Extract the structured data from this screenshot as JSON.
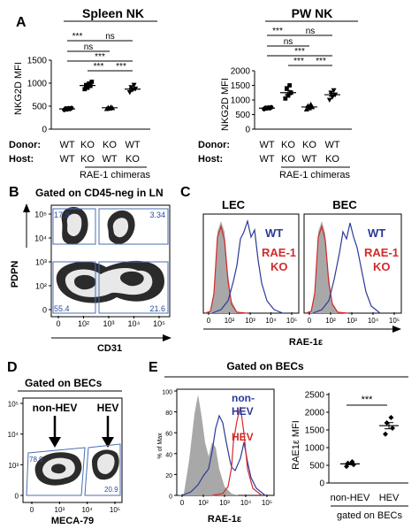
{
  "colors": {
    "wt": "#2a3a9a",
    "ko": "#d42a2a",
    "fill_gray": "#a8a8a8",
    "gate": "#4a6fb0"
  },
  "panel_a": {
    "letter": "A",
    "spleen_title": "Spleen NK",
    "pw_title": "PW NK",
    "ylabel": "NKG2D MFI",
    "donor_label": "Donor:",
    "host_label": "Host:",
    "chimeras": "RAE-1 chimeras",
    "donor_vals": [
      "WT",
      "KO",
      "KO",
      "WT"
    ],
    "host_vals": [
      "WT",
      "KO",
      "WT",
      "KO"
    ],
    "sig": [
      "***",
      "ns",
      "ns",
      "***",
      "***",
      "***"
    ],
    "spleen_yticks": [
      "0",
      "500",
      "1000",
      "1500"
    ],
    "pw_yticks": [
      "0",
      "500",
      "1000",
      "1500",
      "2000"
    ]
  },
  "panel_b": {
    "letter": "B",
    "title": "Gated on CD45-neg in LN",
    "ylabel": "PDPN",
    "xlabel": "CD31",
    "q_tl": "17.9",
    "q_tr": "3.34",
    "q_bl": "55.4",
    "q_br": "21.6",
    "xticks": [
      "0",
      "10²",
      "10³",
      "10⁴",
      "10⁵"
    ],
    "yticks": [
      "10⁵",
      "10⁴",
      "10³",
      "10²",
      "0"
    ]
  },
  "panel_c": {
    "letter": "C",
    "lec": "LEC",
    "bec": "BEC",
    "wt": "WT",
    "ko1": "RAE-1",
    "ko2": "KO",
    "xlabel": "RAE-1ε",
    "xticks": [
      "0",
      "10²",
      "10³",
      "10⁴",
      "10⁵"
    ]
  },
  "panel_d": {
    "letter": "D",
    "title": "Gated on BECs",
    "nonhev": "non-HEV",
    "hev": "HEV",
    "xlabel": "MECA-79",
    "q1": "78.9",
    "q2": "20.9",
    "xticks": [
      "0",
      "10³",
      "10⁴",
      "10⁵"
    ],
    "yticks": [
      "10⁵",
      "10⁴",
      "10³",
      "0"
    ]
  },
  "panel_e": {
    "letter": "E",
    "title": "Gated on BECs",
    "nonhev1": "non-",
    "nonhev2": "HEV",
    "hev": "HEV",
    "ylabel": "% of Max",
    "xlabel": "RAE-1ε",
    "xticks": [
      "0",
      "10²",
      "10³",
      "10⁴",
      "10⁵"
    ],
    "yticks": [
      "100",
      "80",
      "60",
      "40",
      "20",
      "0"
    ],
    "scatter_ylabel": "RAE1ε MFI",
    "scatter_yticks": [
      "0",
      "500",
      "1000",
      "1500",
      "2000",
      "2500"
    ],
    "cat1": "non-HEV",
    "cat2": "HEV",
    "sig": "***",
    "footer": "gated on BECs"
  },
  "chart_data": [
    {
      "type": "scatter",
      "title": "Spleen NK",
      "ylabel": "NKG2D MFI",
      "ylim": [
        0,
        1500
      ],
      "categories": [
        "WT/WT",
        "KO/KO",
        "KO/WT",
        "WT/KO"
      ],
      "series": [
        {
          "values": [
            [
              420,
              430,
              440,
              450,
              455,
              460
            ],
            [
              870,
              900,
              940,
              960,
              990,
              1030
            ],
            [
              440,
              450,
              460,
              470,
              480
            ],
            [
              800,
              850,
              880,
              910,
              960
            ]
          ]
        }
      ],
      "means": [
        440,
        950,
        465,
        870
      ]
    },
    {
      "type": "scatter",
      "title": "PW NK",
      "ylabel": "NKG2D MFI",
      "ylim": [
        0,
        2000
      ],
      "categories": [
        "WT/WT",
        "KO/KO",
        "KO/WT",
        "WT/KO"
      ],
      "series": [
        {
          "values": [
            [
              690,
              710,
              720,
              730,
              740,
              750
            ],
            [
              1050,
              1150,
              1250,
              1400,
              1500
            ],
            [
              680,
              720,
              760,
              800,
              850
            ],
            [
              1000,
              1100,
              1180,
              1250,
              1330
            ]
          ]
        }
      ],
      "means": [
        720,
        1250,
        760,
        1180
      ]
    },
    {
      "type": "scatter",
      "title": "",
      "ylabel": "RAE1ε MFI",
      "ylim": [
        0,
        2500
      ],
      "categories": [
        "non-HEV",
        "HEV"
      ],
      "series": [
        {
          "values": [
            [
              470,
              520,
              560,
              600
            ],
            [
              1380,
              1550,
              1700,
              1850
            ]
          ]
        }
      ],
      "means": [
        540,
        1620
      ]
    }
  ]
}
